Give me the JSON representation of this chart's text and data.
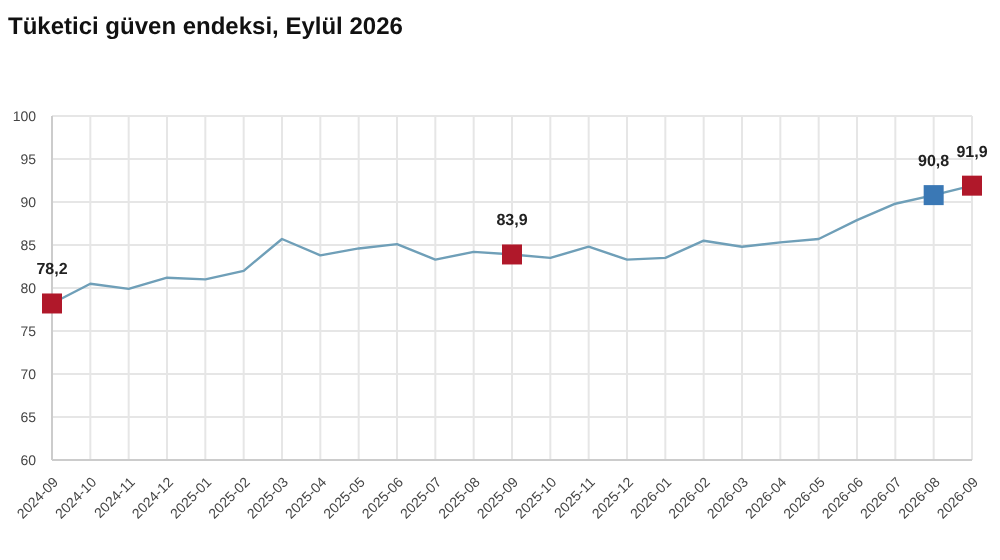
{
  "chart_data": {
    "type": "line",
    "title": "Tüketici güven endeksi, Eylül 2026",
    "categories": [
      "2024-09",
      "2024-10",
      "2024-11",
      "2024-12",
      "2025-01",
      "2025-02",
      "2025-03",
      "2025-04",
      "2025-05",
      "2025-06",
      "2025-07",
      "2025-08",
      "2025-09",
      "2025-10",
      "2025-11",
      "2025-12",
      "2026-01",
      "2026-02",
      "2026-03",
      "2026-04",
      "2026-05",
      "2026-06",
      "2026-07",
      "2026-08",
      "2026-09"
    ],
    "series": [
      {
        "color": "#6f9fb8",
        "marker": "none",
        "values": [
          78.2,
          80.5,
          79.9,
          81.2,
          81.0,
          82.0,
          85.7,
          83.8,
          84.6,
          85.1,
          83.3,
          84.2,
          83.9,
          83.5,
          84.8,
          83.3,
          83.5,
          85.5,
          84.8,
          85.3,
          85.7,
          87.9,
          89.8,
          90.8,
          91.9
        ]
      },
      {
        "type": "scatter",
        "marker": "square",
        "values": [
          78.2,
          null,
          null,
          null,
          null,
          null,
          null,
          null,
          null,
          null,
          null,
          null,
          83.9,
          null,
          null,
          null,
          null,
          null,
          null,
          null,
          null,
          null,
          null,
          90.8,
          91.9
        ],
        "colors": [
          "#b0182a",
          null,
          null,
          null,
          null,
          null,
          null,
          null,
          null,
          null,
          null,
          null,
          "#b0182a",
          null,
          null,
          null,
          null,
          null,
          null,
          null,
          null,
          null,
          null,
          "#3a78b5",
          "#b0182a"
        ],
        "value_labels": [
          "78,2",
          null,
          null,
          null,
          null,
          null,
          null,
          null,
          null,
          null,
          null,
          null,
          "83,9",
          null,
          null,
          null,
          null,
          null,
          null,
          null,
          null,
          null,
          null,
          "90,8",
          "91,9"
        ]
      }
    ],
    "ylim": [
      60,
      100
    ],
    "yticks": [
      60,
      65,
      70,
      75,
      80,
      85,
      90,
      95,
      100
    ],
    "grid": true,
    "legend": false
  }
}
